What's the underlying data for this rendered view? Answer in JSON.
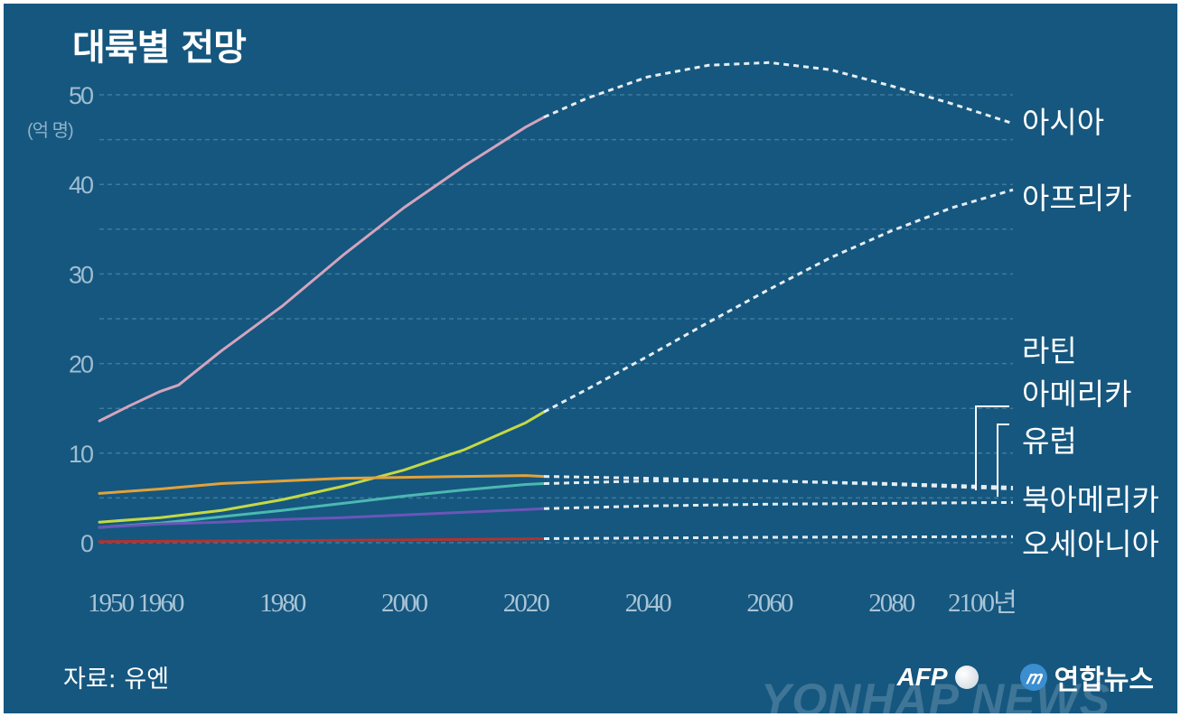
{
  "title": "대륙별 전망",
  "unit": "(억 명)",
  "source": "자료: 유엔",
  "credit": {
    "afp": "AFP",
    "yonhap": "연합뉴스",
    "watermark": "YONHAP NEWS"
  },
  "colors": {
    "background": "#15577f",
    "grid": "#3f7a9c"
  },
  "chart_data": {
    "type": "line",
    "title": "대륙별 전망",
    "ylabel": "(억 명)",
    "x_ticks": [
      "1950",
      "1960",
      "1980",
      "2000",
      "2020",
      "2040",
      "2060",
      "2080",
      "2100년"
    ],
    "x_tick_values": [
      1950,
      1960,
      1980,
      2000,
      2020,
      2040,
      2060,
      2080,
      2100
    ],
    "y_ticks": [
      "0",
      "10",
      "20",
      "30",
      "40",
      "50"
    ],
    "y_tick_values": [
      0,
      10,
      20,
      30,
      40,
      50
    ],
    "xlim": [
      1950,
      2100
    ],
    "ylim": [
      0,
      50
    ],
    "grid": true,
    "projection_start": 2023,
    "series": [
      {
        "name": "아시아",
        "color": "#d5a4bd",
        "points": [
          [
            1950,
            13.6
          ],
          [
            1955,
            15.3
          ],
          [
            1960,
            16.9
          ],
          [
            1963,
            17.6
          ],
          [
            1970,
            21.4
          ],
          [
            1980,
            26.4
          ],
          [
            1990,
            32.1
          ],
          [
            2000,
            37.4
          ],
          [
            2010,
            42.1
          ],
          [
            2020,
            46.4
          ],
          [
            2023,
            47.5
          ],
          [
            2030,
            49.6
          ],
          [
            2040,
            52.0
          ],
          [
            2050,
            53.3
          ],
          [
            2060,
            53.6
          ],
          [
            2070,
            52.8
          ],
          [
            2080,
            51.0
          ],
          [
            2090,
            49.0
          ],
          [
            2100,
            46.8
          ]
        ]
      },
      {
        "name": "아프리카",
        "color": "#c5d845",
        "points": [
          [
            1950,
            2.3
          ],
          [
            1960,
            2.8
          ],
          [
            1970,
            3.6
          ],
          [
            1980,
            4.8
          ],
          [
            1990,
            6.3
          ],
          [
            2000,
            8.1
          ],
          [
            2010,
            10.4
          ],
          [
            2020,
            13.4
          ],
          [
            2023,
            14.6
          ],
          [
            2030,
            17.1
          ],
          [
            2040,
            20.8
          ],
          [
            2050,
            24.6
          ],
          [
            2060,
            28.3
          ],
          [
            2070,
            31.8
          ],
          [
            2080,
            34.8
          ],
          [
            2090,
            37.4
          ],
          [
            2100,
            39.4
          ]
        ]
      },
      {
        "name": "라틴 아메리카",
        "color": "#4cb8b2",
        "points": [
          [
            1950,
            1.7
          ],
          [
            1960,
            2.2
          ],
          [
            1970,
            2.9
          ],
          [
            1980,
            3.6
          ],
          [
            1990,
            4.4
          ],
          [
            2000,
            5.2
          ],
          [
            2010,
            5.9
          ],
          [
            2020,
            6.5
          ],
          [
            2023,
            6.6
          ],
          [
            2040,
            6.9
          ],
          [
            2060,
            6.9
          ],
          [
            2080,
            6.6
          ],
          [
            2100,
            6.2
          ]
        ]
      },
      {
        "name": "유럽",
        "color": "#e3a23a",
        "points": [
          [
            1950,
            5.5
          ],
          [
            1960,
            6.0
          ],
          [
            1970,
            6.6
          ],
          [
            1980,
            6.9
          ],
          [
            1990,
            7.2
          ],
          [
            2000,
            7.3
          ],
          [
            2010,
            7.4
          ],
          [
            2020,
            7.5
          ],
          [
            2023,
            7.4
          ],
          [
            2040,
            7.2
          ],
          [
            2060,
            6.9
          ],
          [
            2080,
            6.5
          ],
          [
            2100,
            6.0
          ]
        ]
      },
      {
        "name": "북아메리카",
        "color": "#6b55b8",
        "points": [
          [
            1950,
            1.7
          ],
          [
            1960,
            2.1
          ],
          [
            1970,
            2.3
          ],
          [
            1980,
            2.6
          ],
          [
            1990,
            2.8
          ],
          [
            2000,
            3.1
          ],
          [
            2010,
            3.4
          ],
          [
            2020,
            3.7
          ],
          [
            2023,
            3.8
          ],
          [
            2040,
            4.1
          ],
          [
            2060,
            4.3
          ],
          [
            2080,
            4.4
          ],
          [
            2100,
            4.5
          ]
        ]
      },
      {
        "name": "오세아니아",
        "color": "#b4322f",
        "points": [
          [
            1950,
            0.13
          ],
          [
            1980,
            0.23
          ],
          [
            2000,
            0.31
          ],
          [
            2020,
            0.43
          ],
          [
            2023,
            0.45
          ],
          [
            2060,
            0.6
          ],
          [
            2100,
            0.69
          ]
        ]
      }
    ],
    "labels": [
      {
        "series": "아시아",
        "lines": [
          "아시아"
        ]
      },
      {
        "series": "아프리카",
        "lines": [
          "아프리카"
        ]
      },
      {
        "series": "라틴 아메리카",
        "lines": [
          "라틴",
          "아메리카"
        ]
      },
      {
        "series": "유럽",
        "lines": [
          "유럽"
        ]
      },
      {
        "series": "북아메리카",
        "lines": [
          "북아메리카"
        ]
      },
      {
        "series": "오세아니아",
        "lines": [
          "오세아니아"
        ]
      }
    ]
  }
}
